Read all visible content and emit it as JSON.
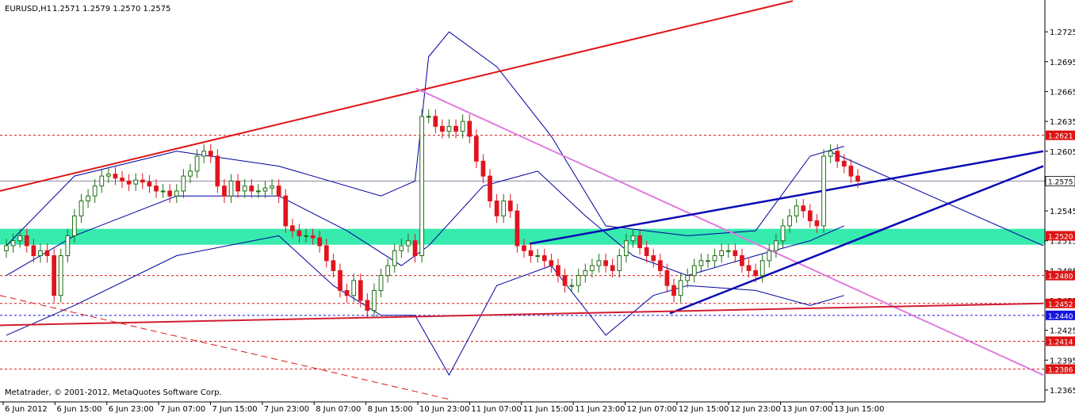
{
  "header": {
    "symbol": "EURUSD,H1",
    "ohlc": "1.2571 1.2579 1.2570 1.2575"
  },
  "footer": {
    "copyright": "Metatrader, © 2001-2012, MetaQuotes Software Corp."
  },
  "colors": {
    "background": "#ffffff",
    "bull": "#1e6e14",
    "bear": "#e0141e",
    "bollinger": "#00009e",
    "resistance": "#e01414",
    "channel": "#0a0ab4",
    "pink_trend": "#e07ae0",
    "zone": "#14e6a0",
    "level_line": "#c8142e",
    "support_line": "#d21e32"
  },
  "chart_data": {
    "type": "candlestick",
    "symbol": "EURUSD",
    "timeframe": "H1",
    "ylim": [
      1.2353,
      1.2757
    ],
    "yticks": [
      "1.2725",
      "1.2695",
      "1.2665",
      "1.2635",
      "1.2605",
      "1.2575",
      "1.2545",
      "1.2515",
      "1.2485",
      "1.2455",
      "1.2425",
      "1.2395",
      "1.2365"
    ],
    "xticks": [
      "6 Jun 2012",
      "6 Jun 15:00",
      "6 Jun 23:00",
      "7 Jun 07:00",
      "7 Jun 15:00",
      "7 Jun 23:00",
      "8 Jun 07:00",
      "8 Jun 15:00",
      "10 Jun 23:00",
      "11 Jun 07:00",
      "11 Jun 15:00",
      "11 Jun 23:00",
      "12 Jun 07:00",
      "12 Jun 15:00",
      "12 Jun 23:00",
      "13 Jun 07:00",
      "13 Jun 15:00"
    ],
    "current_price": "1.2575",
    "price_levels": [
      {
        "label": "1.2621",
        "color": "#dc1414",
        "style": "dotted"
      },
      {
        "label": "1.2520",
        "color": "#dc1414",
        "style": "zone"
      },
      {
        "label": "1.2480",
        "color": "#dc1414",
        "style": "dotted"
      },
      {
        "label": "1.2452",
        "color": "#dc1414",
        "style": "dotted"
      },
      {
        "label": "1.2440",
        "color": "#1414dc",
        "style": "dotted"
      },
      {
        "label": "1.2414",
        "color": "#dc1414",
        "style": "dotted"
      },
      {
        "label": "1.2386",
        "color": "#dc1414",
        "style": "dotted"
      }
    ],
    "support_zone": [
      1.2511,
      1.2527
    ],
    "close_series": [
      1.251,
      1.2515,
      1.252,
      1.251,
      1.25,
      1.2505,
      1.25,
      1.246,
      1.25,
      1.252,
      1.254,
      1.2555,
      1.256,
      1.257,
      1.258,
      1.2582,
      1.2578,
      1.2575,
      1.2572,
      1.2576,
      1.2574,
      1.257,
      1.2565,
      1.2565,
      1.256,
      1.2565,
      1.258,
      1.2585,
      1.26,
      1.2605,
      1.26,
      1.257,
      1.256,
      1.2575,
      1.2565,
      1.257,
      1.2565,
      1.2565,
      1.2568,
      1.257,
      1.256,
      1.253,
      1.2525,
      1.252,
      1.252,
      1.2518,
      1.251,
      1.2495,
      1.2485,
      1.2465,
      1.246,
      1.2475,
      1.2455,
      1.2445,
      1.2465,
      1.248,
      1.249,
      1.2505,
      1.251,
      1.2515,
      1.25,
      1.264,
      1.264,
      1.263,
      1.2625,
      1.263,
      1.2625,
      1.2635,
      1.262,
      1.2595,
      1.258,
      1.2555,
      1.254,
      1.2555,
      1.2545,
      1.251,
      1.2505,
      1.25,
      1.25,
      1.2495,
      1.249,
      1.248,
      1.247,
      1.247,
      1.248,
      1.2485,
      1.249,
      1.2495,
      1.249,
      1.2485,
      1.25,
      1.2515,
      1.252,
      1.2508,
      1.25,
      1.2495,
      1.2485,
      1.247,
      1.246,
      1.2475,
      1.248,
      1.249,
      1.2495,
      1.2495,
      1.25,
      1.2505,
      1.2505,
      1.25,
      1.249,
      1.2485,
      1.248,
      1.2495,
      1.2505,
      1.2515,
      1.253,
      1.254,
      1.255,
      1.2545,
      1.2535,
      1.253,
      1.26,
      1.2605,
      1.2595,
      1.259,
      1.258,
      1.2575
    ],
    "bollinger": {
      "upper": [
        [
          0,
          1.251
        ],
        [
          10,
          1.258
        ],
        [
          25,
          1.2605
        ],
        [
          40,
          1.259
        ],
        [
          55,
          1.256
        ],
        [
          60,
          1.2575
        ],
        [
          62,
          1.27
        ],
        [
          65,
          1.2725
        ],
        [
          72,
          1.269
        ],
        [
          80,
          1.262
        ],
        [
          88,
          1.253
        ],
        [
          100,
          1.252
        ],
        [
          110,
          1.2525
        ],
        [
          118,
          1.26
        ],
        [
          123,
          1.261
        ]
      ],
      "middle": [
        [
          0,
          1.248
        ],
        [
          10,
          1.252
        ],
        [
          25,
          1.256
        ],
        [
          40,
          1.256
        ],
        [
          50,
          1.2525
        ],
        [
          58,
          1.249
        ],
        [
          62,
          1.251
        ],
        [
          70,
          1.257
        ],
        [
          78,
          1.2585
        ],
        [
          85,
          1.254
        ],
        [
          92,
          1.25
        ],
        [
          100,
          1.248
        ],
        [
          110,
          1.25
        ],
        [
          118,
          1.2515
        ],
        [
          123,
          1.253
        ]
      ],
      "lower": [
        [
          0,
          1.242
        ],
        [
          10,
          1.245
        ],
        [
          25,
          1.25
        ],
        [
          40,
          1.252
        ],
        [
          48,
          1.247
        ],
        [
          55,
          1.244
        ],
        [
          60,
          1.244
        ],
        [
          65,
          1.238
        ],
        [
          72,
          1.247
        ],
        [
          80,
          1.249
        ],
        [
          88,
          1.242
        ],
        [
          95,
          1.246
        ],
        [
          100,
          1.247
        ],
        [
          110,
          1.2465
        ],
        [
          118,
          1.245
        ],
        [
          123,
          1.246
        ]
      ]
    }
  }
}
